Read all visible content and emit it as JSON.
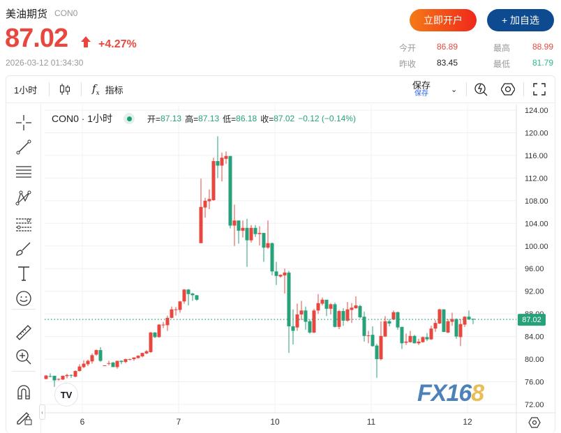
{
  "header": {
    "title": "美油期货",
    "code": "CON0",
    "price": "87.02",
    "change_pct": "+4.27%",
    "timestamp": "2026-03-12 01:34:30",
    "open_account_label": "立即开户",
    "add_watch_label": "+ 加自选",
    "stats": {
      "open_label": "今开",
      "open": "86.89",
      "high_label": "最高",
      "high": "88.99",
      "prev_close_label": "昨收",
      "prev_close": "83.45",
      "low_label": "最低",
      "low": "81.79"
    },
    "colors": {
      "up": "#e8473f",
      "down": "#26a17a",
      "brand": "#0e4a8f"
    }
  },
  "toolbar": {
    "interval": "1小时",
    "indicators_label": "指标",
    "save_label": "保存",
    "save_sub": "保存"
  },
  "left_tools": [
    "crosshair-icon",
    "trend-line-icon",
    "horizontal-lines-icon",
    "pattern-icon",
    "fib-icon",
    "brush-icon",
    "text-icon",
    "emoji-icon",
    "ruler-icon",
    "zoom-in-icon",
    "magnet-icon",
    "lock-draw-icon"
  ],
  "legend": {
    "symbol": "CON0",
    "interval": "1小时",
    "o_label": "开=",
    "o": "87.13",
    "h_label": "高=",
    "h": "87.13",
    "l_label": "低=",
    "l": "86.18",
    "c_label": "收=",
    "c": "87.02",
    "chg": "−0.12 (−0.14%)"
  },
  "watermark": "FX168",
  "tv_logo": "TV",
  "chart_data": {
    "type": "candlestick",
    "ylim": [
      70,
      126
    ],
    "y_ticks": [
      "124.00",
      "120.00",
      "116.00",
      "112.00",
      "108.00",
      "104.00",
      "100.00",
      "96.00",
      "92.00",
      "88.00",
      "84.00",
      "80.00",
      "76.00",
      "72.00"
    ],
    "x_labels": [
      {
        "label": "6",
        "index": 9
      },
      {
        "label": "7",
        "index": 32
      },
      {
        "label": "10",
        "index": 55
      },
      {
        "label": "11",
        "index": 78
      },
      {
        "label": "12",
        "index": 101
      }
    ],
    "last_price": "87.02",
    "ohlc": [
      [
        76.5,
        77.2,
        76.4,
        77.1
      ],
      [
        77.0,
        77.5,
        76.8,
        76.9
      ],
      [
        77.05,
        77.1,
        75.1,
        76.25
      ],
      [
        76.4,
        76.6,
        76.2,
        76.5
      ],
      [
        76.4,
        77.1,
        76.3,
        77.05
      ],
      [
        77.0,
        77.4,
        76.6,
        77.2
      ],
      [
        77.2,
        77.3,
        76.7,
        77.1
      ],
      [
        76.9,
        78.0,
        76.8,
        77.9
      ],
      [
        77.9,
        79.1,
        77.8,
        78.7
      ],
      [
        78.6,
        79.8,
        78.4,
        79.2
      ],
      [
        79.1,
        79.9,
        78.8,
        79.7
      ],
      [
        79.6,
        81.0,
        79.2,
        80.7
      ],
      [
        80.8,
        81.7,
        80.6,
        81.6
      ],
      [
        81.6,
        82.1,
        79.5,
        79.7
      ],
      [
        78.9,
        78.9,
        78.9,
        78.9
      ],
      [
        79.3,
        79.7,
        78.9,
        79.3
      ],
      [
        79.4,
        79.5,
        78.6,
        78.6
      ],
      [
        78.6,
        79.7,
        78.3,
        79.7
      ],
      [
        79.7,
        79.8,
        79.1,
        79.5
      ],
      [
        79.5,
        80.1,
        79.3,
        80.0
      ],
      [
        80.0,
        80.1,
        79.8,
        80.0
      ],
      [
        80.0,
        80.3,
        79.7,
        80.3
      ],
      [
        80.2,
        80.7,
        80.1,
        80.6
      ],
      [
        80.5,
        81.1,
        80.3,
        81.1
      ],
      [
        81.0,
        81.6,
        80.9,
        81.4
      ],
      [
        81.25,
        84.8,
        81.1,
        84.7
      ],
      [
        84.7,
        84.8,
        83.7,
        83.9
      ],
      [
        83.9,
        86.2,
        83.8,
        86.1
      ],
      [
        86.05,
        86.6,
        85.5,
        86.1
      ],
      [
        86.0,
        87.7,
        85.0,
        87.3
      ],
      [
        87.3,
        89.3,
        87.2,
        88.8
      ],
      [
        88.8,
        89.2,
        87.7,
        88.8
      ],
      [
        88.7,
        90.3,
        88.2,
        90.2
      ],
      [
        90.2,
        92.4,
        89.8,
        92.3
      ],
      [
        92.3,
        92.4,
        89.5,
        91.5
      ],
      [
        91.6,
        91.7,
        90.3,
        91.3
      ],
      [
        91.3,
        91.3,
        90.3,
        90.5
      ],
      [
        100.5,
        111.9,
        100.5,
        106.9
      ],
      [
        106.8,
        108.5,
        105.0,
        108.0
      ],
      [
        107.9,
        110.0,
        106.5,
        108.3
      ],
      [
        108.1,
        115.6,
        108.0,
        115.0
      ],
      [
        115.0,
        119.4,
        112.0,
        114.2
      ],
      [
        114.2,
        116.5,
        111.4,
        115.6
      ],
      [
        115.4,
        116.7,
        114.5,
        115.9
      ],
      [
        115.9,
        115.9,
        103.1,
        103.6
      ],
      [
        103.6,
        107.3,
        100.0,
        104.5
      ],
      [
        104.5,
        104.5,
        100.4,
        102.7
      ],
      [
        102.7,
        104.5,
        101.5,
        103.2
      ],
      [
        103.2,
        104.8,
        96.3,
        101.0
      ],
      [
        101.0,
        103.7,
        100.6,
        103.2
      ],
      [
        103.2,
        103.7,
        101.6,
        102.1
      ],
      [
        102.1,
        103.5,
        100.1,
        102.3
      ],
      [
        102.3,
        102.3,
        97.2,
        99.7
      ],
      [
        99.7,
        104.5,
        99.5,
        100.5
      ],
      [
        100.5,
        100.6,
        94.8,
        95.5
      ],
      [
        95.5,
        97.2,
        93.1,
        94.7
      ],
      [
        94.6,
        95.0,
        94.4,
        94.9
      ],
      [
        94.8,
        96.0,
        91.6,
        95.3
      ],
      [
        95.3,
        95.6,
        81.1,
        85.8
      ],
      [
        85.8,
        88.8,
        82.6,
        85.0
      ],
      [
        85.6,
        89.8,
        85.0,
        87.9
      ],
      [
        87.9,
        90.3,
        86.9,
        88.6
      ],
      [
        88.6,
        89.3,
        85.2,
        86.6
      ],
      [
        86.7,
        87.0,
        84.5,
        84.7
      ],
      [
        84.7,
        88.9,
        84.6,
        88.6
      ],
      [
        88.6,
        91.5,
        88.0,
        89.9
      ],
      [
        89.8,
        90.9,
        89.5,
        90.5
      ],
      [
        90.5,
        90.5,
        87.6,
        88.9
      ],
      [
        88.9,
        89.9,
        87.9,
        89.7
      ],
      [
        89.7,
        90.0,
        85.6,
        85.7
      ],
      [
        85.7,
        88.7,
        85.3,
        88.5
      ],
      [
        88.5,
        89.0,
        85.9,
        86.8
      ],
      [
        86.8,
        90.1,
        86.6,
        88.8
      ],
      [
        88.7,
        89.9,
        86.4,
        89.1
      ],
      [
        89.0,
        91.1,
        88.9,
        89.5
      ],
      [
        89.4,
        89.6,
        87.2,
        87.4
      ],
      [
        87.5,
        88.4,
        83.1,
        84.1
      ],
      [
        84.2,
        85.0,
        82.8,
        84.2
      ],
      [
        84.3,
        85.8,
        82.2,
        82.3
      ],
      [
        82.4,
        82.7,
        76.7,
        80.0
      ],
      [
        80.0,
        86.7,
        79.8,
        84.1
      ],
      [
        84.0,
        87.6,
        83.9,
        86.7
      ],
      [
        86.7,
        87.1,
        85.8,
        86.3
      ],
      [
        87.0,
        88.6,
        86.9,
        88.3
      ],
      [
        88.3,
        88.4,
        85.2,
        85.6
      ],
      [
        85.7,
        85.7,
        81.8,
        82.8
      ],
      [
        82.9,
        84.5,
        82.5,
        83.1
      ],
      [
        83.0,
        85.0,
        82.9,
        84.1
      ],
      [
        84.1,
        84.3,
        82.8,
        82.8
      ],
      [
        82.8,
        83.6,
        82.5,
        83.1
      ],
      [
        83.0,
        84.0,
        82.9,
        83.9
      ],
      [
        83.9,
        84.6,
        83.2,
        83.5
      ],
      [
        83.5,
        85.9,
        83.4,
        85.4
      ],
      [
        85.4,
        86.9,
        84.8,
        86.4
      ],
      [
        86.3,
        88.9,
        86.2,
        88.8
      ],
      [
        88.8,
        88.8,
        84.8,
        84.8
      ],
      [
        84.7,
        87.1,
        84.6,
        86.7
      ],
      [
        86.6,
        88.2,
        85.9,
        87.1
      ],
      [
        87.1,
        87.2,
        83.6,
        84.0
      ],
      [
        83.9,
        87.1,
        82.3,
        86.2
      ],
      [
        86.1,
        87.6,
        85.7,
        87.5
      ],
      [
        87.5,
        88.6,
        87.0,
        87.0
      ],
      [
        87.13,
        87.13,
        86.18,
        87.02
      ]
    ]
  }
}
